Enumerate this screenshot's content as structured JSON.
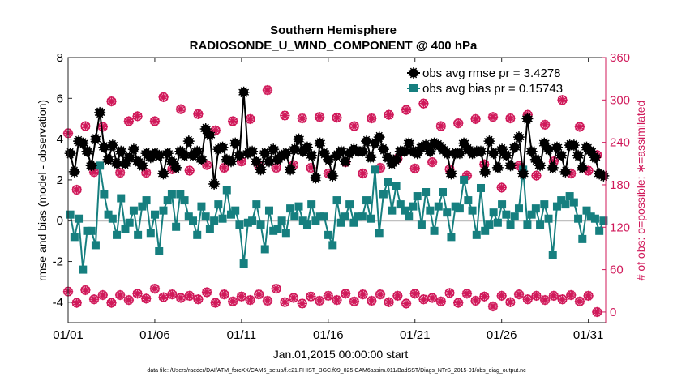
{
  "chart_data": {
    "type": "line",
    "title": "Southern Hemisphere",
    "subtitle": "RADIOSONDE_U_WIND_COMPONENT @ 400 hPa",
    "xlabel": "Jan.01,2015 00:00:00 start",
    "ylabel": "rmse and bias (model - observation)",
    "ylabel_right": "# of obs: o=possible; ∗=assimilated",
    "xlim": [
      0,
      62
    ],
    "ylim": [
      -5,
      8
    ],
    "ylim_right": [
      -15,
      360
    ],
    "x_ticks": [
      0,
      10,
      20,
      30,
      40,
      50,
      60
    ],
    "x_tick_labels": [
      "01/01",
      "01/06",
      "01/11",
      "01/16",
      "01/21",
      "01/26",
      "01/31"
    ],
    "y_ticks": [
      -4,
      -2,
      0,
      2,
      4,
      6,
      8
    ],
    "y_ticks_right": [
      0,
      60,
      120,
      180,
      240,
      300,
      360
    ],
    "reference_line": 0,
    "series": [
      {
        "name": "obs avg rmse pr = 3.4278",
        "axis": "left",
        "color": "#000000",
        "values": [
          3.3,
          2.4,
          3.9,
          3.8,
          3.4,
          2.7,
          4.0,
          5.3,
          3.6,
          3.0,
          3.7,
          2.8,
          3.4,
          2.8,
          3.1,
          3.5,
          2.9,
          2.7,
          3.3,
          3.1,
          3.3,
          3.2,
          2.3,
          3.3,
          2.9,
          2.6,
          3.4,
          3.2,
          3.9,
          3.2,
          3.4,
          3.0,
          4.5,
          4.2,
          1.8,
          3.5,
          3.6,
          3.0,
          2.9,
          3.8,
          3.2,
          6.3,
          3.3,
          3.4,
          2.9,
          2.5,
          3.3,
          2.9,
          3.5,
          3.0,
          3.2,
          3.3,
          2.5,
          3.5,
          4.0,
          3.4,
          3.6,
          3.2,
          2.1,
          3.8,
          3.3,
          3.0,
          2.2,
          3.2,
          3.4,
          2.9,
          3.3,
          3.5,
          3.4,
          3.4,
          3.9,
          3.1,
          3.8,
          4.1,
          3.5,
          3.1,
          2.8,
          3.0,
          3.4,
          3.4,
          3.8,
          3.4,
          3.3,
          3.6,
          3.7,
          3.4,
          3.8,
          3.7,
          3.5,
          3.3,
          2.3,
          3.3,
          3.3,
          3.8,
          3.5,
          3.3,
          3.4,
          3.4,
          2.4,
          3.9,
          3.3,
          2.6,
          3.5,
          3.2,
          2.7,
          3.6,
          4.1,
          2.3,
          5.0,
          3.4,
          3.0,
          2.7,
          3.8,
          3.5,
          2.6,
          3.6,
          3.2,
          2.4,
          3.7,
          3.7,
          3.2,
          2.6,
          3.6,
          3.4,
          3.1,
          2.3,
          2.2
        ]
      },
      {
        "name": "obs avg bias pr = 0.15743",
        "axis": "left",
        "color": "#167f7f",
        "values": [
          0.3,
          -0.8,
          0.1,
          -2.4,
          -0.5,
          -0.5,
          -1.2,
          2.7,
          1.3,
          0.3,
          0.1,
          -0.7,
          1.1,
          -0.4,
          -0.1,
          0.5,
          -0.7,
          0.7,
          1.0,
          -0.6,
          0.3,
          -1.5,
          0.5,
          1.0,
          1.3,
          -0.3,
          1.3,
          1.0,
          0.2,
          0.0,
          -0.7,
          0.7,
          0.2,
          -0.4,
          0.0,
          0.8,
          0.1,
          1.5,
          0.3,
          0.5,
          -0.2,
          -2.1,
          -0.1,
          0.0,
          0.8,
          -0.2,
          -1.4,
          0.5,
          -0.5,
          -0.4,
          0.0,
          -0.6,
          0.6,
          0.2,
          0.7,
          0.0,
          -0.2,
          0.8,
          0.0,
          0.2,
          0.2,
          -0.7,
          -1.2,
          1.0,
          -0.1,
          0.2,
          0.8,
          -0.1,
          0.2,
          0.2,
          1.0,
          0.1,
          2.5,
          -0.6,
          1.3,
          1.9,
          0.5,
          1.7,
          0.8,
          0.5,
          0.2,
          0.7,
          1.2,
          -0.2,
          1.4,
          0.5,
          -0.5,
          0.7,
          1.4,
          0.4,
          -0.8,
          0.7,
          0.6,
          2.0,
          1.0,
          0.5,
          -0.7,
          1.6,
          -0.5,
          -0.2,
          0.4,
          -0.1,
          0.8,
          0.3,
          -0.2,
          0.2,
          0.6,
          2.5,
          -0.2,
          0.3,
          0.6,
          -0.2,
          0.8,
          0.1,
          -1.7,
          0.7,
          1.0,
          0.8,
          1.2,
          0.9,
          0.1,
          -0.9,
          0.5,
          0.2,
          0.1,
          -0.5,
          0.0
        ]
      }
    ],
    "obs_counts": {
      "axis": "right",
      "color": "#d0195a",
      "possible_marker": "o",
      "assimilated_marker": "∗",
      "high_x": [
        0,
        1,
        2,
        3,
        4,
        5,
        6,
        7,
        8,
        9,
        10,
        11,
        12,
        13,
        14,
        15,
        16,
        17,
        18,
        19,
        20,
        21,
        22,
        23,
        24,
        25,
        26,
        27,
        28,
        29,
        30,
        31,
        32,
        33,
        34,
        35,
        36,
        37,
        38,
        39,
        40,
        41,
        42,
        43,
        44,
        45,
        46,
        47,
        48,
        49,
        50,
        51,
        52,
        53,
        54,
        55,
        56,
        57,
        58,
        59,
        60,
        61
      ],
      "high_values": [
        253,
        173,
        263,
        198,
        262,
        298,
        197,
        270,
        277,
        197,
        270,
        304,
        202,
        287,
        200,
        280,
        208,
        257,
        204,
        270,
        213,
        273,
        207,
        314,
        204,
        278,
        208,
        274,
        204,
        276,
        196,
        275,
        212,
        263,
        196,
        274,
        204,
        279,
        217,
        286,
        203,
        295,
        212,
        263,
        202,
        267,
        193,
        273,
        209,
        276,
        176,
        274,
        207,
        279,
        193,
        265,
        213,
        300,
        196,
        262,
        200,
        222
      ],
      "low_x": [
        0,
        1,
        2,
        3,
        4,
        5,
        6,
        7,
        8,
        9,
        10,
        11,
        12,
        13,
        14,
        15,
        16,
        17,
        18,
        19,
        20,
        21,
        22,
        23,
        24,
        25,
        26,
        27,
        28,
        29,
        30,
        31,
        32,
        33,
        34,
        35,
        36,
        37,
        38,
        39,
        40,
        41,
        42,
        43,
        44,
        45,
        46,
        47,
        48,
        49,
        50,
        51,
        52,
        53,
        54,
        55,
        56,
        57,
        58,
        59,
        60,
        61
      ],
      "low_values": [
        29,
        13,
        31,
        18,
        24,
        13,
        24,
        17,
        26,
        19,
        33,
        21,
        25,
        20,
        23,
        18,
        28,
        13,
        25,
        15,
        22,
        17,
        25,
        16,
        33,
        14,
        20,
        12,
        22,
        16,
        23,
        17,
        26,
        15,
        25,
        16,
        25,
        14,
        23,
        12,
        26,
        18,
        20,
        15,
        27,
        13,
        26,
        16,
        22,
        8,
        23,
        14,
        25,
        18,
        23,
        17,
        23,
        18,
        24,
        15,
        23,
        0
      ]
    }
  },
  "legend": {
    "rmse_label": "obs avg rmse pr = 3.4278",
    "bias_label": "obs avg bias pr = 0.15743"
  },
  "footer": "data file: /Users/raeder/DAI/ATM_forcXX/CAM6_setup/f.e21.FHIST_BGC.f09_025.CAM6assim.011/BadSST/Diags_NTrS_2015-01/obs_diag_output.nc"
}
